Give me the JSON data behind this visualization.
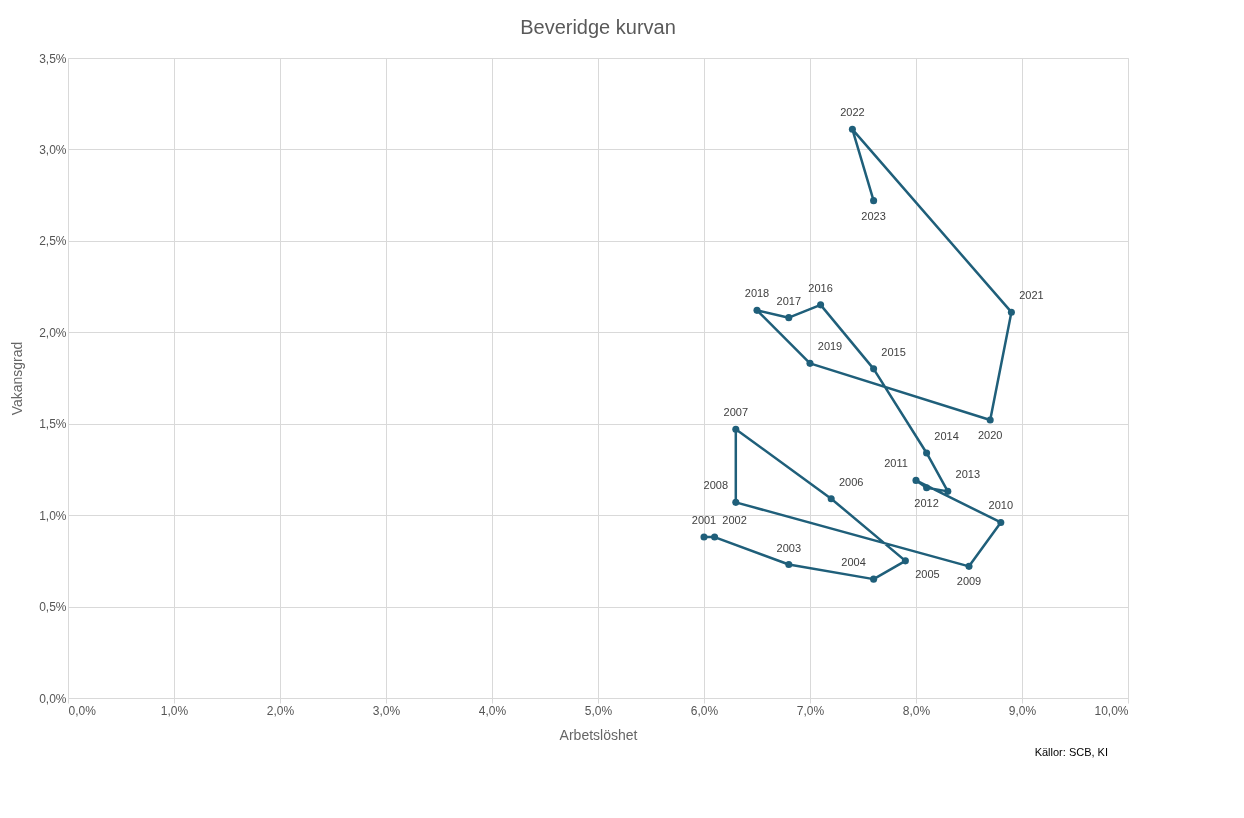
{
  "chart_data": {
    "type": "line",
    "title": "Beveridge kurvan",
    "xlabel": "Arbetslöshet",
    "ylabel": "Vakansgrad",
    "x": [
      6.0,
      6.1,
      6.8,
      7.6,
      7.9,
      7.2,
      6.3,
      6.3,
      8.5,
      8.8,
      8.0,
      8.1,
      8.3,
      8.1,
      7.6,
      7.1,
      6.8,
      6.5,
      7.0,
      8.7,
      8.9,
      7.4,
      7.6
    ],
    "series": [
      {
        "color": "#1f5f7a",
        "values": [
          0.88,
          0.88,
          0.73,
          0.65,
          0.75,
          1.09,
          1.47,
          1.07,
          0.72,
          0.96,
          1.19,
          1.15,
          1.13,
          1.34,
          1.8,
          2.15,
          2.08,
          2.12,
          1.83,
          1.52,
          2.11,
          3.11,
          2.72
        ]
      }
    ],
    "annotations": [
      {
        "text": "2001",
        "x": 6.0,
        "y": 0.88
      },
      {
        "text": "2002",
        "x": 6.1,
        "y": 0.88
      },
      {
        "text": "2003",
        "x": 6.8,
        "y": 0.73
      },
      {
        "text": "2004",
        "x": 7.6,
        "y": 0.65
      },
      {
        "text": "2005",
        "x": 7.9,
        "y": 0.75
      },
      {
        "text": "2006",
        "x": 7.2,
        "y": 1.09
      },
      {
        "text": "2007",
        "x": 6.3,
        "y": 1.47
      },
      {
        "text": "2008",
        "x": 6.3,
        "y": 1.07
      },
      {
        "text": "2009",
        "x": 8.5,
        "y": 0.72
      },
      {
        "text": "2010",
        "x": 8.8,
        "y": 0.96
      },
      {
        "text": "2011",
        "x": 8.0,
        "y": 1.19
      },
      {
        "text": "2012",
        "x": 8.1,
        "y": 1.15
      },
      {
        "text": "2013",
        "x": 8.3,
        "y": 1.13
      },
      {
        "text": "2014",
        "x": 8.1,
        "y": 1.34
      },
      {
        "text": "2015",
        "x": 7.6,
        "y": 1.8
      },
      {
        "text": "2016",
        "x": 7.1,
        "y": 2.15
      },
      {
        "text": "2017",
        "x": 6.8,
        "y": 2.08
      },
      {
        "text": "2018",
        "x": 6.5,
        "y": 2.12
      },
      {
        "text": "2019",
        "x": 7.0,
        "y": 1.83
      },
      {
        "text": "2020",
        "x": 8.7,
        "y": 1.52
      },
      {
        "text": "2021",
        "x": 8.9,
        "y": 2.11
      },
      {
        "text": "2022",
        "x": 7.4,
        "y": 3.11
      },
      {
        "text": "2023",
        "x": 7.6,
        "y": 2.72
      },
      "Källor: SCB, KI"
    ],
    "xlim": [
      0,
      10
    ],
    "ylim": [
      0,
      3.5
    ],
    "xticks": [
      {
        "value": 0,
        "label": "0,0%"
      },
      {
        "value": 1,
        "label": "1,0%"
      },
      {
        "value": 2,
        "label": "2,0%"
      },
      {
        "value": 3,
        "label": "3,0%"
      },
      {
        "value": 4,
        "label": "4,0%"
      },
      {
        "value": 5,
        "label": "5,0%"
      },
      {
        "value": 6,
        "label": "6,0%"
      },
      {
        "value": 7,
        "label": "7,0%"
      },
      {
        "value": 8,
        "label": "8,0%"
      },
      {
        "value": 9,
        "label": "9,0%"
      },
      {
        "value": 10,
        "label": "10,0%"
      }
    ],
    "yticks": [
      {
        "value": 0,
        "label": "0,0%"
      },
      {
        "value": 0.5,
        "label": "0,5%"
      },
      {
        "value": 1,
        "label": "1,0%"
      },
      {
        "value": 1.5,
        "label": "1,5%"
      },
      {
        "value": 2,
        "label": "2,0%"
      },
      {
        "value": 2.5,
        "label": "2,5%"
      },
      {
        "value": 3,
        "label": "3,0%"
      },
      {
        "value": 3.5,
        "label": "3,5%"
      }
    ],
    "grid": true,
    "marker": "circle",
    "line_style": "solid"
  }
}
